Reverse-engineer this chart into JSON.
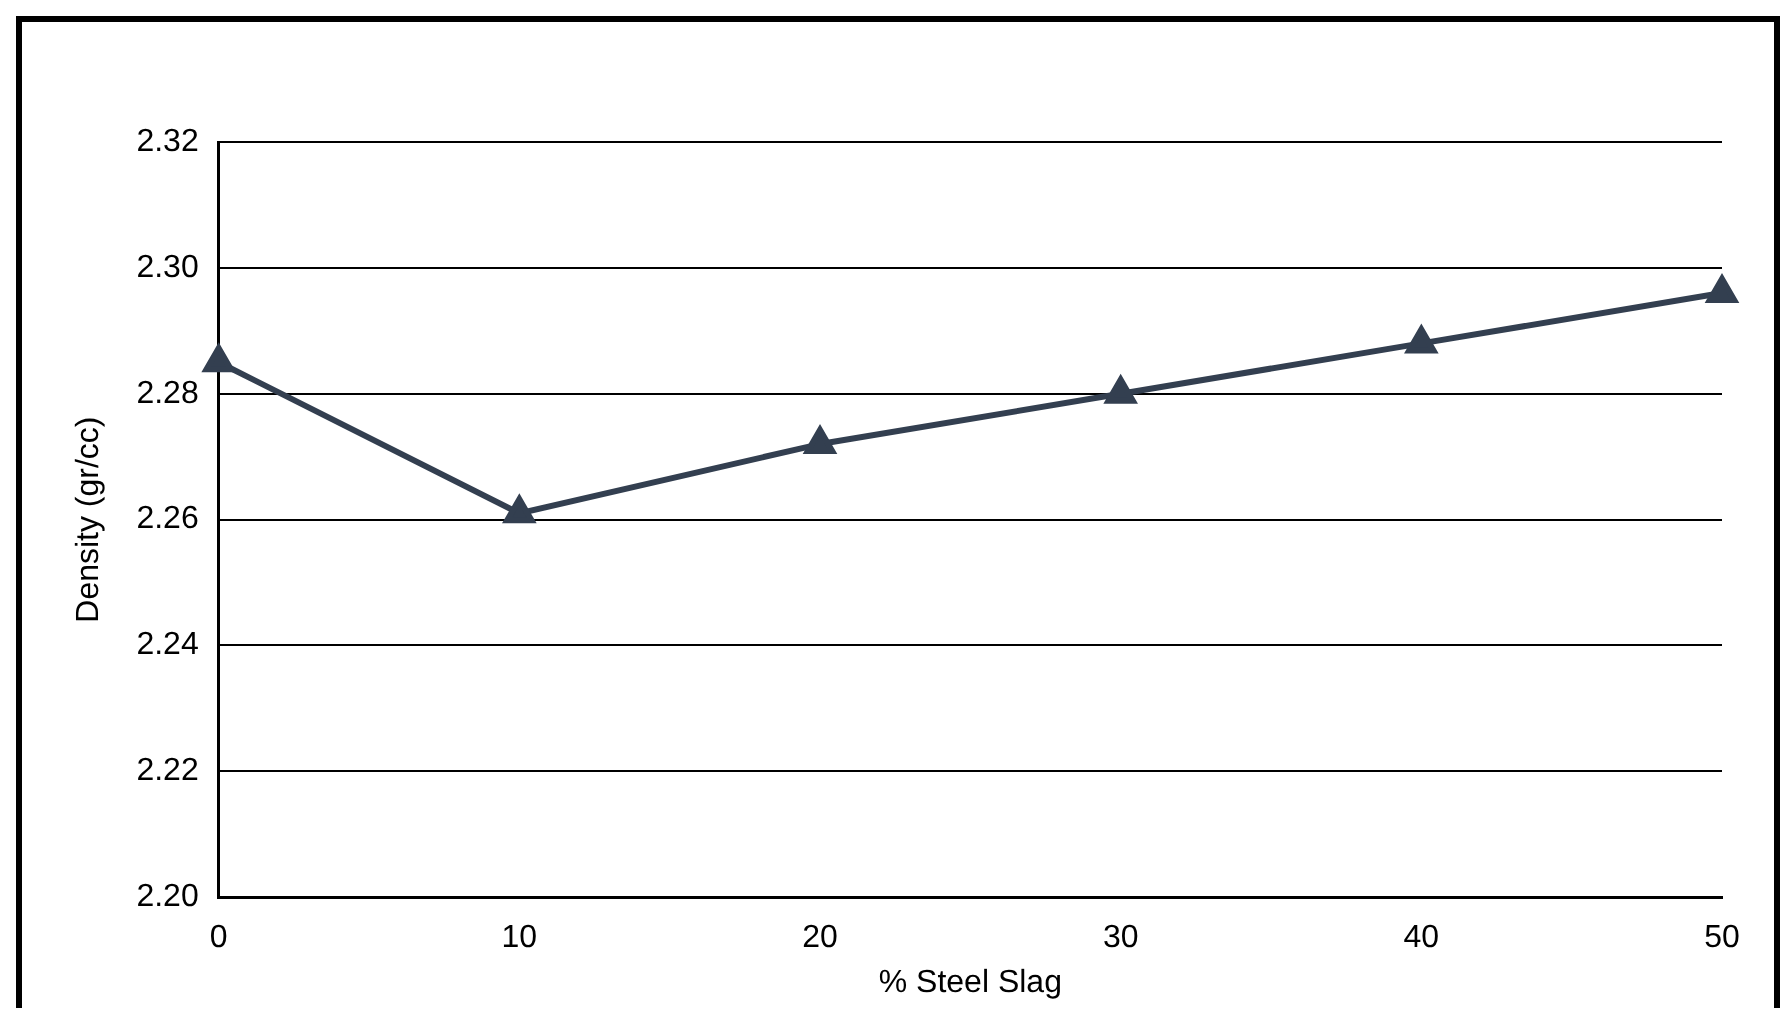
{
  "chart_data": {
    "type": "line",
    "xlabel": "% Steel Slag",
    "ylabel": "Density (gr/cc)",
    "x": [
      0,
      10,
      20,
      30,
      40,
      50
    ],
    "series": [
      {
        "color": "#333f50",
        "values": [
          2.285,
          2.261,
          2.272,
          2.28,
          2.288,
          2.296
        ]
      }
    ],
    "xlim": [
      0,
      50
    ],
    "xticks": [
      0,
      10,
      20,
      30,
      40,
      50
    ],
    "ylim": [
      2.2,
      2.32
    ],
    "yticks": [
      {
        "value": 2.2,
        "label": "2.20"
      },
      {
        "value": 2.22,
        "label": "2.22"
      },
      {
        "value": 2.24,
        "label": "2.24"
      },
      {
        "value": 2.26,
        "label": "2.26"
      },
      {
        "value": 2.28,
        "label": "2.28"
      },
      {
        "value": 2.3,
        "label": "2.30"
      },
      {
        "value": 2.32,
        "label": "2.32"
      }
    ],
    "grid": "y",
    "legend": false,
    "marker": "triangle",
    "line_style": "solid"
  }
}
